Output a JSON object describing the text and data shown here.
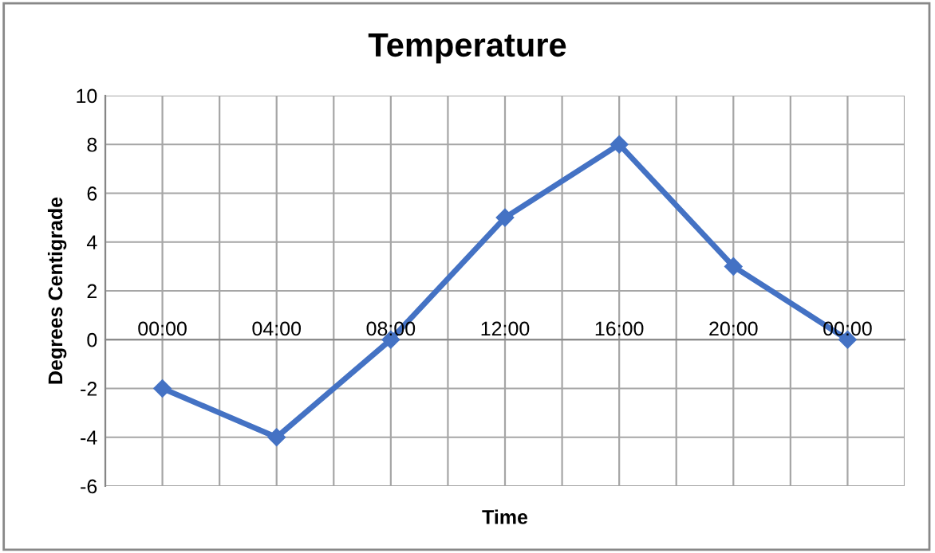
{
  "chart_data": {
    "type": "line",
    "title": "Temperature",
    "xlabel": "Time",
    "ylabel": "Degrees Centigrade",
    "categories": [
      "00:00",
      "04:00",
      "08:00",
      "12:00",
      "16:00",
      "20:00",
      "00:00"
    ],
    "series": [
      {
        "color": "#4472c4",
        "values": [
          -2,
          -4,
          0,
          5,
          8,
          3,
          0
        ]
      }
    ],
    "ylim": [
      -6,
      10
    ],
    "yticks": [
      -6,
      -4,
      -2,
      0,
      2,
      4,
      6,
      8,
      10
    ],
    "grid": true,
    "marker": "diamond",
    "line_style": "solid"
  }
}
